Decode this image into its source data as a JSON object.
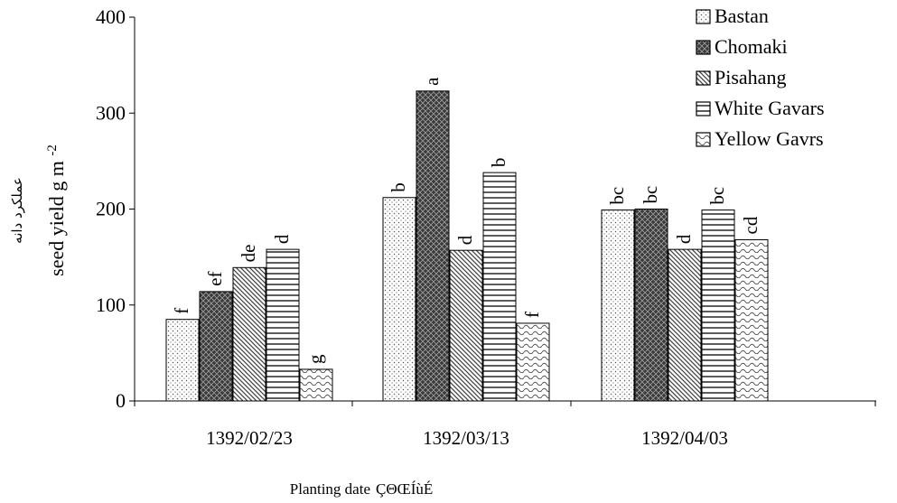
{
  "chart_data": {
    "type": "bar",
    "categories": [
      "1392/02/23",
      "1392/03/13",
      "1392/04/03"
    ],
    "ylim": [
      0,
      400
    ],
    "yticks": [
      0,
      100,
      200,
      300,
      400
    ],
    "ylabel": "seed yield g m",
    "ylabel_superscript": "-2",
    "ylabel_persian": "عملکرد دانه",
    "xlabel": "Planting date",
    "xlabel_garbled": "ÇΘŒÍùÉ",
    "legend_position": "top-right",
    "grid": false,
    "series": [
      {
        "name": "Bastan",
        "values": [
          85,
          212,
          199
        ],
        "letters": [
          "f",
          "b",
          "bc"
        ],
        "pattern": "dots"
      },
      {
        "name": "Chomaki",
        "values": [
          114,
          323,
          200
        ],
        "letters": [
          "ef",
          "a",
          "bc"
        ],
        "pattern": "dark-cross"
      },
      {
        "name": "Pisahang",
        "values": [
          139,
          157,
          158
        ],
        "letters": [
          "de",
          "d",
          "d"
        ],
        "pattern": "diagonal"
      },
      {
        "name": "White Gavars",
        "values": [
          158,
          238,
          199
        ],
        "letters": [
          "d",
          "b",
          "bc"
        ],
        "pattern": "horizontal"
      },
      {
        "name": "Yellow Gavrs",
        "values": [
          33,
          81,
          168
        ],
        "letters": [
          "g",
          "f",
          "cd"
        ],
        "pattern": "wave"
      }
    ]
  }
}
